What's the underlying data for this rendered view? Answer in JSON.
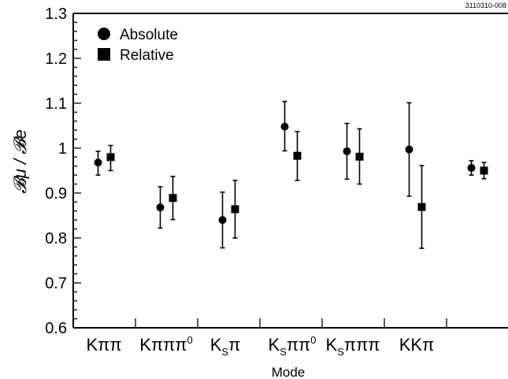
{
  "figure_tag": "3110310-008",
  "chart_data": {
    "type": "scatter",
    "xlabel": "Mode",
    "ylabel": "𝓑μ / 𝓑e",
    "ylim": [
      0.6,
      1.3
    ],
    "yticks": [
      "0.6",
      "0.7",
      "0.8",
      "0.9",
      "1",
      "1.1",
      "1.2",
      "1.3"
    ],
    "categories": [
      {
        "main": "Kππ",
        "sub": "",
        "tail": ""
      },
      {
        "main": "Kπππ",
        "sub": "",
        "tail": "0",
        "sup": true
      },
      {
        "main": "K",
        "sub": "S",
        "tail": "π"
      },
      {
        "main": "K",
        "sub": "S",
        "tail": "ππ",
        "sup_tail": "0"
      },
      {
        "main": "K",
        "sub": "S",
        "tail": "πππ"
      },
      {
        "main": "KKπ",
        "sub": "",
        "tail": ""
      },
      {
        "main": "",
        "sub": "",
        "tail": ""
      }
    ],
    "legend": {
      "position": "top-left",
      "entries": [
        "Absolute",
        "Relative"
      ]
    },
    "series": [
      {
        "name": "Absolute",
        "marker": "circle",
        "values": [
          0.968,
          0.868,
          0.84,
          1.048,
          0.993,
          0.997,
          0.956
        ],
        "err_low": [
          0.028,
          0.046,
          0.062,
          0.054,
          0.062,
          0.104,
          0.016
        ],
        "err_high": [
          0.025,
          0.046,
          0.062,
          0.056,
          0.062,
          0.104,
          0.016
        ]
      },
      {
        "name": "Relative",
        "marker": "square",
        "values": [
          0.98,
          0.889,
          0.864,
          0.983,
          0.981,
          0.869,
          0.95
        ],
        "err_low": [
          0.03,
          0.048,
          0.064,
          0.055,
          0.061,
          0.092,
          0.018
        ],
        "err_high": [
          0.026,
          0.048,
          0.064,
          0.054,
          0.062,
          0.092,
          0.018
        ]
      }
    ]
  }
}
